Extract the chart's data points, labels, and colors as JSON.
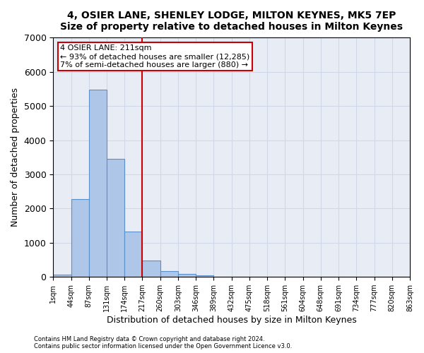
{
  "title": "4, OSIER LANE, SHENLEY LODGE, MILTON KEYNES, MK5 7EP",
  "subtitle": "Size of property relative to detached houses in Milton Keynes",
  "xlabel": "Distribution of detached houses by size in Milton Keynes",
  "ylabel": "Number of detached properties",
  "bar_values": [
    75,
    2280,
    5470,
    3450,
    1320,
    480,
    160,
    90,
    55,
    0,
    0,
    0,
    0,
    0,
    0,
    0,
    0,
    0,
    0,
    0
  ],
  "bin_labels": [
    "1sqm",
    "44sqm",
    "87sqm",
    "131sqm",
    "174sqm",
    "217sqm",
    "260sqm",
    "303sqm",
    "346sqm",
    "389sqm",
    "432sqm",
    "475sqm",
    "518sqm",
    "561sqm",
    "604sqm",
    "648sqm",
    "691sqm",
    "734sqm",
    "777sqm",
    "820sqm",
    "863sqm"
  ],
  "bar_color": "#aec6e8",
  "bar_edge_color": "#5b8fc9",
  "grid_color": "#d0d8e8",
  "background_color": "#e8edf5",
  "vline_color": "#cc0000",
  "vline_pos": 4.5,
  "annotation_text": "4 OSIER LANE: 211sqm\n← 93% of detached houses are smaller (12,285)\n7% of semi-detached houses are larger (880) →",
  "annotation_box_color": "#ffffff",
  "annotation_box_edge_color": "#cc0000",
  "ylim": [
    0,
    7000
  ],
  "yticks": [
    0,
    1000,
    2000,
    3000,
    4000,
    5000,
    6000,
    7000
  ],
  "footer_line1": "Contains HM Land Registry data © Crown copyright and database right 2024.",
  "footer_line2": "Contains public sector information licensed under the Open Government Licence v3.0."
}
